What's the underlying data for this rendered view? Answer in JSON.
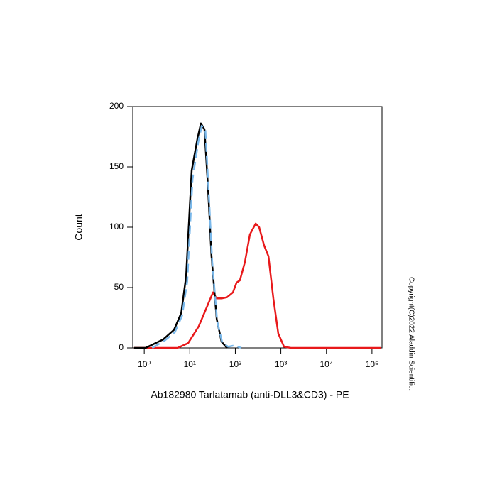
{
  "chart_data": {
    "type": "line",
    "xlabel": "Ab182980 Tarlatamab (anti-DLL3&CD3) - PE",
    "ylabel": "Count",
    "watermark": "Copyright(C)2022 Aladdin Scientific.",
    "xscale": "log",
    "xlim": [
      0.56,
      166000
    ],
    "ylim": [
      0,
      200
    ],
    "xticks": [
      {
        "value": 1,
        "label": "10⁰"
      },
      {
        "value": 10,
        "label": "10¹"
      },
      {
        "value": 100,
        "label": "10²"
      },
      {
        "value": 1000,
        "label": "10³"
      },
      {
        "value": 10000,
        "label": "10⁴"
      },
      {
        "value": 100000,
        "label": "10⁵"
      }
    ],
    "yticks": [
      0,
      50,
      100,
      150,
      200
    ],
    "series": [
      {
        "color": "#e8191b",
        "dashed": false,
        "x": [
          0.6,
          5.4,
          9.2,
          15.8,
          22.6,
          32.4,
          38.7,
          50,
          66,
          88.6,
          106,
          126,
          162,
          209,
          280,
          333,
          428,
          533,
          683,
          875,
          1170,
          1660,
          160000
        ],
        "values": [
          0,
          0,
          4,
          18,
          32,
          46,
          41,
          41,
          42,
          46,
          54,
          56,
          71,
          94,
          103,
          100,
          85,
          76,
          41,
          12,
          1,
          0,
          0
        ]
      },
      {
        "color": "#000000",
        "dashed": false,
        "x": [
          0.6,
          1.07,
          2.6,
          4.5,
          6.5,
          8.3,
          11,
          14.7,
          17.6,
          21,
          25,
          30,
          39,
          50,
          66
        ],
        "values": [
          0,
          0,
          7,
          15,
          29,
          59,
          147,
          173,
          186,
          181,
          135,
          76,
          24,
          5,
          0
        ]
      },
      {
        "color": "#7ab8ea",
        "dashed": true,
        "x": [
          1.5,
          2.8,
          4.7,
          6.8,
          8.8,
          11.5,
          15.3,
          18.3,
          22,
          26,
          31,
          40,
          52,
          70,
          95,
          136
        ],
        "values": [
          0,
          6,
          13,
          27,
          55,
          140,
          170,
          184,
          180,
          130,
          72,
          22,
          4,
          1,
          2,
          0
        ]
      }
    ]
  }
}
